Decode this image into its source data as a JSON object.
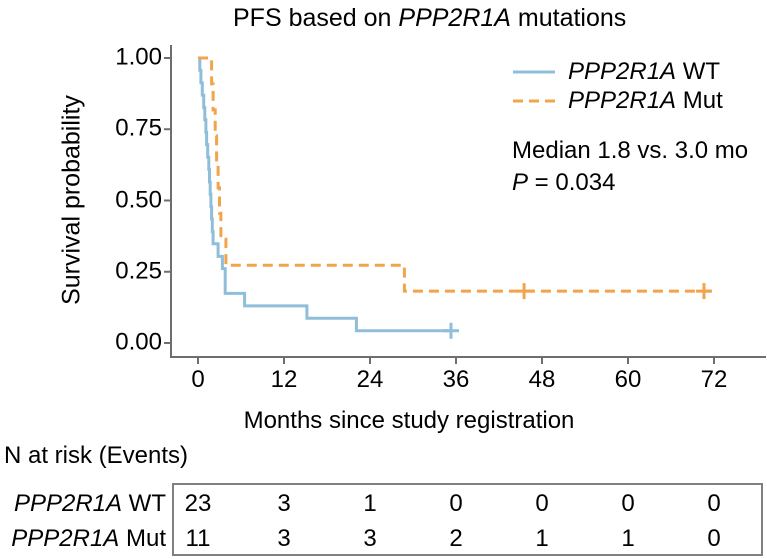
{
  "title": {
    "prefix": "PFS based on ",
    "gene": "PPP2R1A",
    "suffix": " mutations"
  },
  "axes": {
    "y_label": "Survival probability",
    "x_label": "Months since study registration",
    "y_tick_labels": [
      "1.00",
      "0.75",
      "0.50",
      "0.25",
      "0.00"
    ],
    "y_tick_values": [
      1,
      0.75,
      0.5,
      0.25,
      0
    ],
    "x_tick_labels": [
      "0",
      "12",
      "24",
      "36",
      "48",
      "60",
      "72"
    ],
    "x_tick_values": [
      0,
      12,
      24,
      36,
      48,
      60,
      72
    ]
  },
  "legend": {
    "items": [
      {
        "key": "wt",
        "gene": "PPP2R1A",
        "rest": " WT"
      },
      {
        "key": "mut",
        "gene": "PPP2R1A",
        "rest": " Mut"
      }
    ]
  },
  "annotation": {
    "median_line": "Median 1.8 vs. 3.0 mo",
    "p_italic": "P",
    "p_rest": " = 0.034"
  },
  "risk_table": {
    "header": "N at risk (Events)",
    "rows": [
      {
        "gene": "PPP2R1A",
        "rest": " WT",
        "counts": [
          "23",
          "3",
          "1",
          "0",
          "0",
          "0",
          "0"
        ]
      },
      {
        "gene": "PPP2R1A",
        "rest": " Mut",
        "counts": [
          "11",
          "3",
          "3",
          "2",
          "1",
          "1",
          "0"
        ]
      }
    ]
  },
  "colors": {
    "wt": "#8fbeda",
    "mut": "#f2a44c",
    "axis": "#6e6e6e",
    "table_border": "#808080",
    "text": "#000000"
  },
  "chart_data": {
    "type": "line",
    "subtype": "kaplan-meier-step",
    "title": "PFS based on PPP2R1A mutations",
    "xlabel": "Months since study registration",
    "ylabel": "Survival probability",
    "xlim": [
      0,
      72
    ],
    "ylim": [
      0,
      1
    ],
    "x_ticks": [
      0,
      12,
      24,
      36,
      48,
      60,
      72
    ],
    "y_ticks": [
      0,
      0.25,
      0.5,
      0.75,
      1
    ],
    "grid": false,
    "legend_position": "top-right",
    "annotations": [
      "Median 1.8 vs. 3.0 mo",
      "P = 0.034"
    ],
    "series": [
      {
        "key": "wt",
        "name": "PPP2R1A WT",
        "line_style": "solid",
        "n": 23,
        "median_months": 1.8,
        "steps": [
          [
            0.1,
            1.0
          ],
          [
            0.25,
            0.957
          ],
          [
            0.4,
            0.913
          ],
          [
            0.6,
            0.87
          ],
          [
            0.8,
            0.826
          ],
          [
            0.95,
            0.783
          ],
          [
            1.1,
            0.739
          ],
          [
            1.2,
            0.696
          ],
          [
            1.35,
            0.652
          ],
          [
            1.5,
            0.609
          ],
          [
            1.6,
            0.565
          ],
          [
            1.7,
            0.522
          ],
          [
            1.8,
            0.478
          ],
          [
            1.9,
            0.435
          ],
          [
            2.0,
            0.391
          ],
          [
            2.1,
            0.348
          ],
          [
            2.8,
            0.304
          ],
          [
            3.4,
            0.261
          ],
          [
            3.8,
            0.174
          ],
          [
            6.5,
            0.13
          ],
          [
            15.2,
            0.087
          ],
          [
            22.1,
            0.043
          ]
        ],
        "end_time": 35.3,
        "censor_marks": [
          [
            35.3,
            0.043
          ]
        ]
      },
      {
        "key": "mut",
        "name": "PPP2R1A Mut",
        "line_style": "dashed",
        "n": 11,
        "median_months": 3.0,
        "steps": [
          [
            0,
            1.0
          ],
          [
            1.9,
            0.909
          ],
          [
            2.1,
            0.818
          ],
          [
            2.4,
            0.727
          ],
          [
            2.6,
            0.636
          ],
          [
            2.8,
            0.545
          ],
          [
            3.0,
            0.455
          ],
          [
            3.2,
            0.364
          ],
          [
            3.9,
            0.273
          ],
          [
            28.8,
            0.182
          ]
        ],
        "end_time": 71.7,
        "censor_marks": [
          [
            45.5,
            0.182
          ],
          [
            70.6,
            0.182
          ]
        ]
      }
    ],
    "risk_table": {
      "header": "N at risk (Events)",
      "time_points": [
        0,
        12,
        24,
        36,
        48,
        60,
        72
      ],
      "rows": [
        {
          "name": "PPP2R1A WT",
          "n_at_risk": [
            23,
            3,
            1,
            0,
            0,
            0,
            0
          ]
        },
        {
          "name": "PPP2R1A Mut",
          "n_at_risk": [
            11,
            3,
            3,
            2,
            1,
            1,
            0
          ]
        }
      ]
    }
  }
}
